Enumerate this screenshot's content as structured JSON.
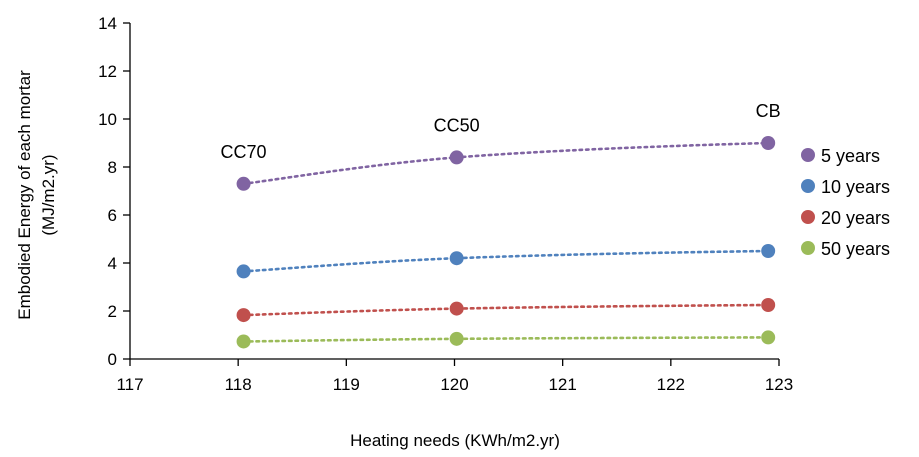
{
  "chart_data": {
    "type": "scatter",
    "xlabel": "Heating needs (KWh/m2.yr)",
    "ylabel": [
      "Embodied Energy of each mortar",
      "(MJ/m2.yr)"
    ],
    "xlim": [
      117,
      123
    ],
    "ylim": [
      0,
      14
    ],
    "xticks": [
      117,
      118,
      119,
      120,
      121,
      122,
      123
    ],
    "yticks": [
      0,
      2,
      4,
      6,
      8,
      10,
      12,
      14
    ],
    "grid": false,
    "legend_position": "right",
    "x": [
      118.05,
      120.02,
      122.9
    ],
    "point_labels": [
      "CC70",
      "CC50",
      "CB"
    ],
    "series": [
      {
        "name": "5 years",
        "color": "#8064a2",
        "values": [
          7.3,
          8.4,
          9.0
        ]
      },
      {
        "name": "10 years",
        "color": "#4f81bd",
        "values": [
          3.65,
          4.2,
          4.5
        ]
      },
      {
        "name": "20 years",
        "color": "#c0504d",
        "values": [
          1.83,
          2.1,
          2.25
        ]
      },
      {
        "name": "50 years",
        "color": "#9bbb59",
        "values": [
          0.73,
          0.84,
          0.9
        ]
      }
    ]
  }
}
